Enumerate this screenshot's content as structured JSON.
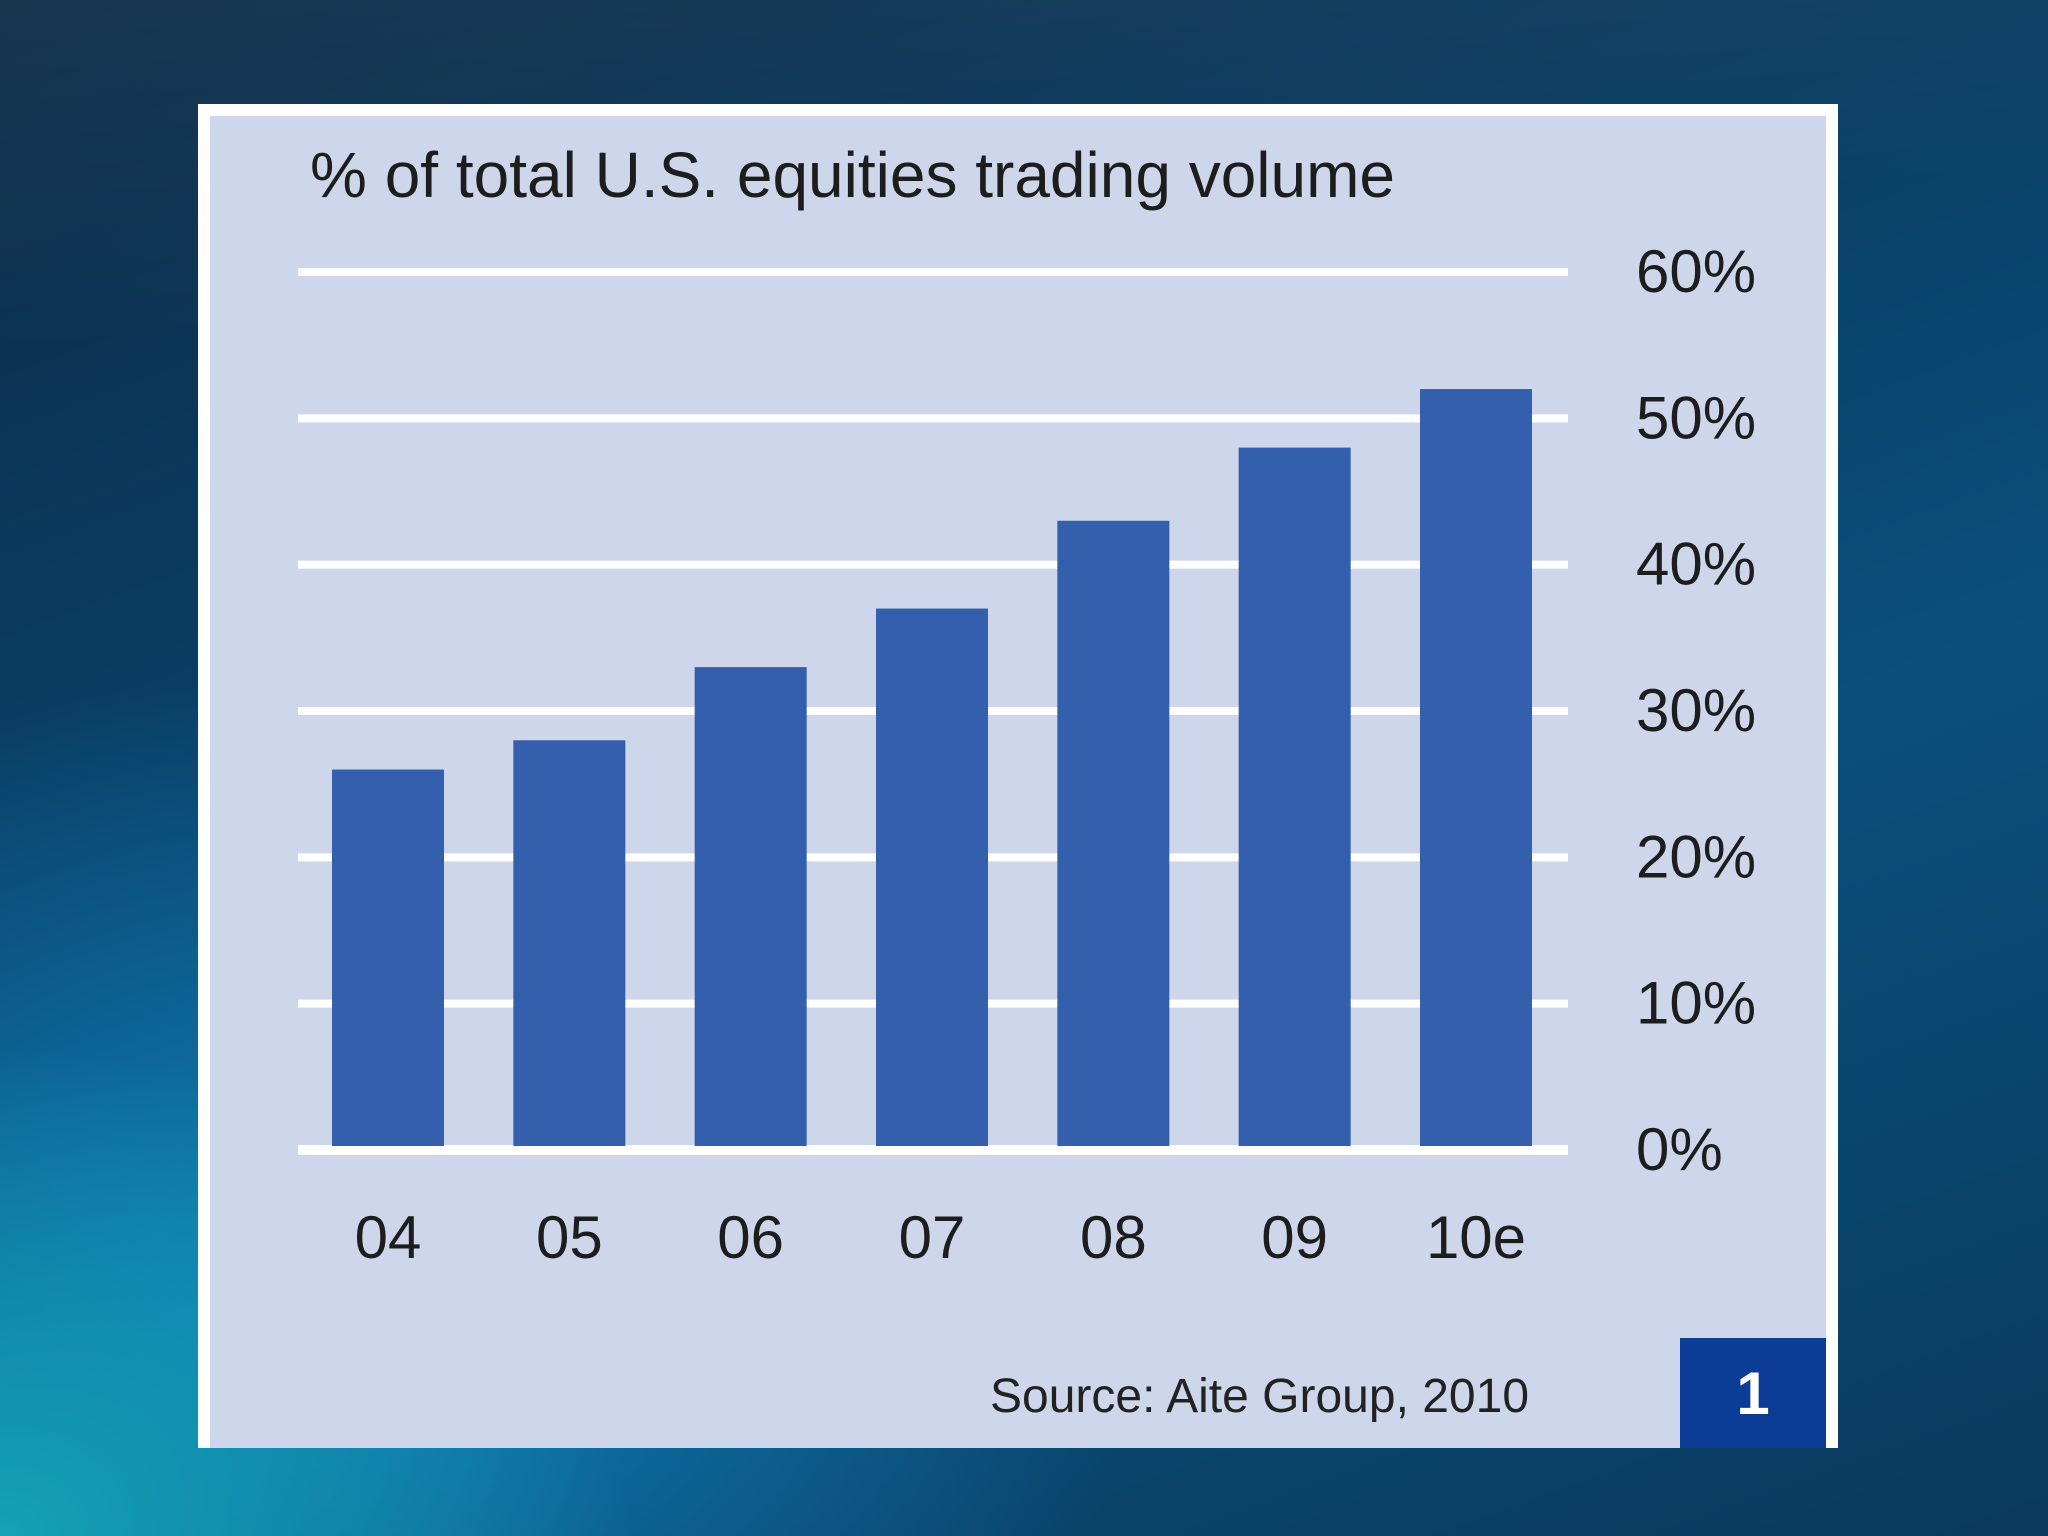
{
  "chart_data": {
    "type": "bar",
    "title": "% of total U.S. equities trading volume",
    "categories": [
      "04",
      "05",
      "06",
      "07",
      "08",
      "09",
      "10e"
    ],
    "values": [
      26,
      28,
      33,
      37,
      43,
      48,
      52
    ],
    "ylim": [
      0,
      60
    ],
    "yticks": [
      0,
      10,
      20,
      30,
      40,
      50,
      60
    ],
    "ytick_labels": [
      "0%",
      "10%",
      "20%",
      "30%",
      "40%",
      "50%",
      "60%"
    ],
    "xlabel": "",
    "ylabel": "",
    "grid": true,
    "y_axis_side": "right",
    "bar_color": "#345fad",
    "grid_color": "#ffffff"
  },
  "footer": {
    "source": "Source: Aite Group, 2010",
    "figure_number": "1"
  }
}
